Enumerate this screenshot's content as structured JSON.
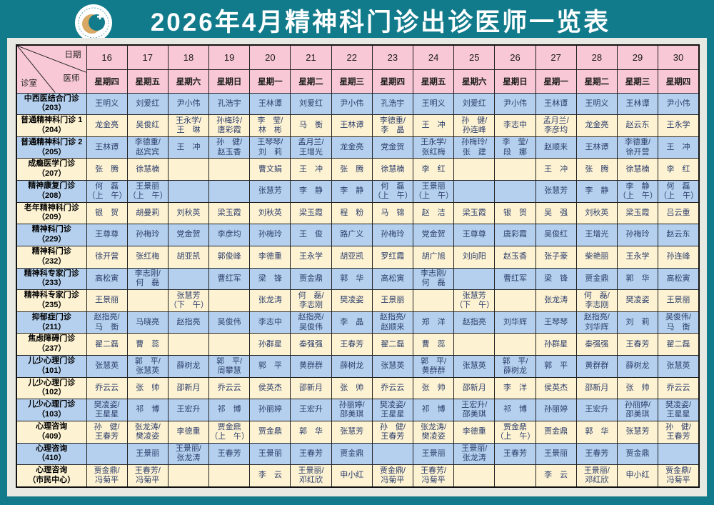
{
  "title": "2026年4月精神科门诊出诊医师一览表",
  "logo": {
    "icon": "hospital-head-profile-logo",
    "ring_color": "#0f7482",
    "head_color": "#d9a964"
  },
  "colors": {
    "background": "#127b8b",
    "panel": "#e8e9e3",
    "header_pink": "#f8c8d7",
    "row_blue": "#b4d0ee",
    "row_cream": "#fdf2d2",
    "border": "#222222",
    "name_text": "#2c3e6b",
    "title_text": "#ffffff"
  },
  "corner": {
    "date_label": "日期",
    "doctor_label": "医师",
    "room_label": "诊室"
  },
  "table": {
    "dates": [
      "16",
      "17",
      "18",
      "19",
      "20",
      "21",
      "22",
      "23",
      "24",
      "25",
      "26",
      "27",
      "28",
      "29",
      "30"
    ],
    "weekdays": [
      "星期四",
      "星期五",
      "星期六",
      "星期日",
      "星期一",
      "星期二",
      "星期三",
      "星期四",
      "星期五",
      "星期六",
      "星期日",
      "星期一",
      "星期二",
      "星期三",
      "星期四"
    ],
    "rows": [
      {
        "dept": "中西医结合门诊",
        "room": "（203）",
        "tone": "blue",
        "cells": [
          "王明义",
          "刘爱红",
          "尹小伟",
          "孔浩宇",
          "王林谭",
          "刘爱红",
          "尹小伟",
          "孔浩宇",
          "王明义",
          "刘爱红",
          "尹小伟",
          "王林谭",
          "王明义",
          "王林谭",
          "尹小伟"
        ]
      },
      {
        "dept": "普通精神科门诊 1",
        "room": "（204）",
        "tone": "cream",
        "cells": [
          "龙金亮",
          "吴俊红",
          "王永学/\n王　琳",
          "孙梅玲/\n唐彩霞",
          "李　莹/\n林　彬",
          "马　衡",
          "王林谭",
          "李德重/\n李　晶",
          "王　冲",
          "孙　健/\n孙连峰",
          "李志中",
          "孟月兰/\n李彦均",
          "龙金亮",
          "赵云东",
          "王永学"
        ]
      },
      {
        "dept": "普通精神科门诊 2",
        "room": "（205）",
        "tone": "blue",
        "cells": [
          "王林谭",
          "李德重/\n赵宾宾",
          "王　冲",
          "孙　健/\n赵玉香",
          "王琴琴/\n刘　莉",
          "孟月兰/\n王增光",
          "龙金亮",
          "党金贺",
          "王永学/\n张红梅",
          "孙梅玲/\n张　建",
          "李　莹/\n段　娜",
          "赵顺来",
          "王林谭",
          "李德重/\n徐开营",
          "王　冲"
        ]
      },
      {
        "dept": "成瘾医学门诊",
        "room": "（207）",
        "tone": "cream",
        "cells": [
          "张　腾",
          "徐慧楠",
          "",
          "",
          "曹文娟",
          "王　冲",
          "张　腾",
          "徐慧楠",
          "李　红",
          "",
          "",
          "王　冲",
          "张　腾",
          "徐慧楠",
          "李　红"
        ]
      },
      {
        "dept": "精神康复门诊",
        "room": "（208）",
        "tone": "blue",
        "cells": [
          "何　磊\n（上　午）",
          "王景丽\n（上　午）",
          "",
          "",
          "张慧芳",
          "李　静",
          "李　静",
          "何　磊\n（上　午）",
          "王景丽\n（上　午）",
          "",
          "",
          "张慧芳",
          "李　静",
          "李　静\n（上　午）",
          "何　磊\n（上　午）"
        ]
      },
      {
        "dept": "老年精神科门诊",
        "room": "（209）",
        "tone": "cream",
        "cells": [
          "银　贺",
          "胡曼莉",
          "刘秋英",
          "梁玉霞",
          "刘秋英",
          "梁玉霞",
          "程　粉",
          "马　锦",
          "赵　洁",
          "梁玉霞",
          "银　贺",
          "吴　强",
          "刘秋英",
          "梁玉霞",
          "吕云重"
        ]
      },
      {
        "dept": "精神科门诊",
        "room": "（229）",
        "tone": "blue",
        "cells": [
          "王尊尊",
          "孙梅玲",
          "党金贺",
          "李彦均",
          "孙梅玲",
          "王　俊",
          "路广义",
          "孙梅玲",
          "党金贺",
          "王尊尊",
          "唐彩霞",
          "吴俊红",
          "王增光",
          "孙梅玲",
          "赵云东"
        ]
      },
      {
        "dept": "精神科门诊",
        "room": "（232）",
        "tone": "cream",
        "cells": [
          "徐开营",
          "张红梅",
          "胡亚凯",
          "郭俊峰",
          "李德重",
          "王永学",
          "胡亚凯",
          "罗红霞",
          "胡广旭",
          "刘向阳",
          "赵玉香",
          "张子豪",
          "柴艳丽",
          "王永学",
          "孙连峰"
        ]
      },
      {
        "dept": "精神科专家门诊",
        "room": "（233）",
        "tone": "blue",
        "cells": [
          "高松寅",
          "李志刚/\n何　磊",
          "",
          "曹红军",
          "梁　锋",
          "贾金鼎",
          "郭　华",
          "高松寅",
          "李志刚/\n何　磊",
          "",
          "曹红军",
          "梁　锋",
          "贾金鼎",
          "郭　华",
          "高松寅"
        ]
      },
      {
        "dept": "精神科专家门诊",
        "room": "（235）",
        "tone": "cream",
        "cells": [
          "王景丽",
          "",
          "张慧芳\n（下　午）",
          "",
          "张龙涛",
          "何　磊/\n李志刚",
          "樊凌姿",
          "王景丽",
          "",
          "张慧芳\n（下　午）",
          "",
          "张龙涛",
          "何　磊/\n李志刚",
          "樊凌姿",
          "王景丽"
        ]
      },
      {
        "dept": "抑郁症门诊",
        "room": "（211）",
        "tone": "blue",
        "cells": [
          "赵指亮/\n马　衡",
          "马晓亮",
          "赵指亮",
          "吴俊伟",
          "李志中",
          "赵指亮/\n吴俊伟",
          "李　晶",
          "赵指亮/\n赵顺来",
          "郑　洋",
          "赵指亮",
          "刘华辉",
          "王琴琴",
          "赵指亮/\n刘华辉",
          "刘　莉",
          "吴俊伟/\n马　衡"
        ]
      },
      {
        "dept": "焦虑障碍门诊",
        "room": "（237）",
        "tone": "cream",
        "cells": [
          "翟二磊",
          "曹　蕊",
          "",
          "",
          "孙群星",
          "秦强强",
          "王春芳",
          "翟二磊",
          "曹　蕊",
          "",
          "",
          "孙群星",
          "秦强强",
          "王春芳",
          "翟二磊"
        ]
      },
      {
        "dept": "儿少心理门诊",
        "room": "（101）",
        "tone": "blue",
        "cells": [
          "张慧英",
          "郭　平/\n张慧英",
          "薛树龙",
          "郭　平/\n周攀慧",
          "郭　平",
          "黄群群",
          "薛树龙",
          "张慧英",
          "郭　平/\n黄群群",
          "张慧英",
          "郭　平/\n薛树龙",
          "郭　平",
          "黄群群",
          "薛树龙",
          "张慧英"
        ]
      },
      {
        "dept": "儿少心理门诊",
        "room": "（102）",
        "tone": "cream",
        "cells": [
          "乔云云",
          "张　帅",
          "邵新月",
          "乔云云",
          "侯英杰",
          "邵新月",
          "张　帅",
          "乔云云",
          "张　帅",
          "邵新月",
          "李　洋",
          "侯英杰",
          "邵新月",
          "张　帅",
          "乔云云"
        ]
      },
      {
        "dept": "儿少心理门诊",
        "room": "（103）",
        "tone": "blue",
        "cells": [
          "樊凌姿/\n王星星",
          "祁　博",
          "王宏升",
          "祁　博",
          "孙丽婷",
          "王宏升",
          "孙丽婷/\n邵美琪",
          "樊凌姿/\n王星星",
          "祁　博",
          "王宏升/\n邵美琪",
          "祁　博",
          "孙丽婷",
          "王宏升",
          "孙丽婷/\n邵美琪",
          "樊凌姿/\n王星星"
        ]
      },
      {
        "dept": "心理咨询",
        "room": "（409）",
        "tone": "cream",
        "cells": [
          "孙　健/\n王春芳",
          "张龙涛/\n樊凌姿",
          "李德重",
          "贾金鼎\n（上　午）",
          "贾金鼎",
          "郭　华",
          "张慧芳",
          "孙　健/\n王春芳",
          "张龙涛/\n樊凌姿",
          "李德重",
          "贾金鼎\n（上　午）",
          "贾金鼎",
          "郭　华",
          "张慧芳",
          "孙　健/\n王春芳"
        ]
      },
      {
        "dept": "心理咨询",
        "room": "（410）",
        "tone": "blue",
        "cells": [
          "",
          "王景丽",
          "王景丽/\n张龙涛",
          "王春芳",
          "王景丽",
          "王春芳",
          "贾金鼎",
          "",
          "王景丽",
          "王景丽/\n张龙涛",
          "王春芳",
          "王景丽",
          "王春芳",
          "贾金鼎",
          ""
        ]
      },
      {
        "dept": "心理咨询",
        "room": "（市民中心）",
        "tone": "cream",
        "cells": [
          "贾金鼎/\n冯菊平",
          "王春芳/\n冯菊平",
          "",
          "",
          "李　云",
          "王景丽/\n邓红欣",
          "申小红",
          "贾金鼎/\n冯菊平",
          "王春芳/\n冯菊平",
          "",
          "",
          "李　云",
          "王景丽/\n邓红欣",
          "申小红",
          "贾金鼎/\n冯菊平"
        ]
      }
    ]
  }
}
